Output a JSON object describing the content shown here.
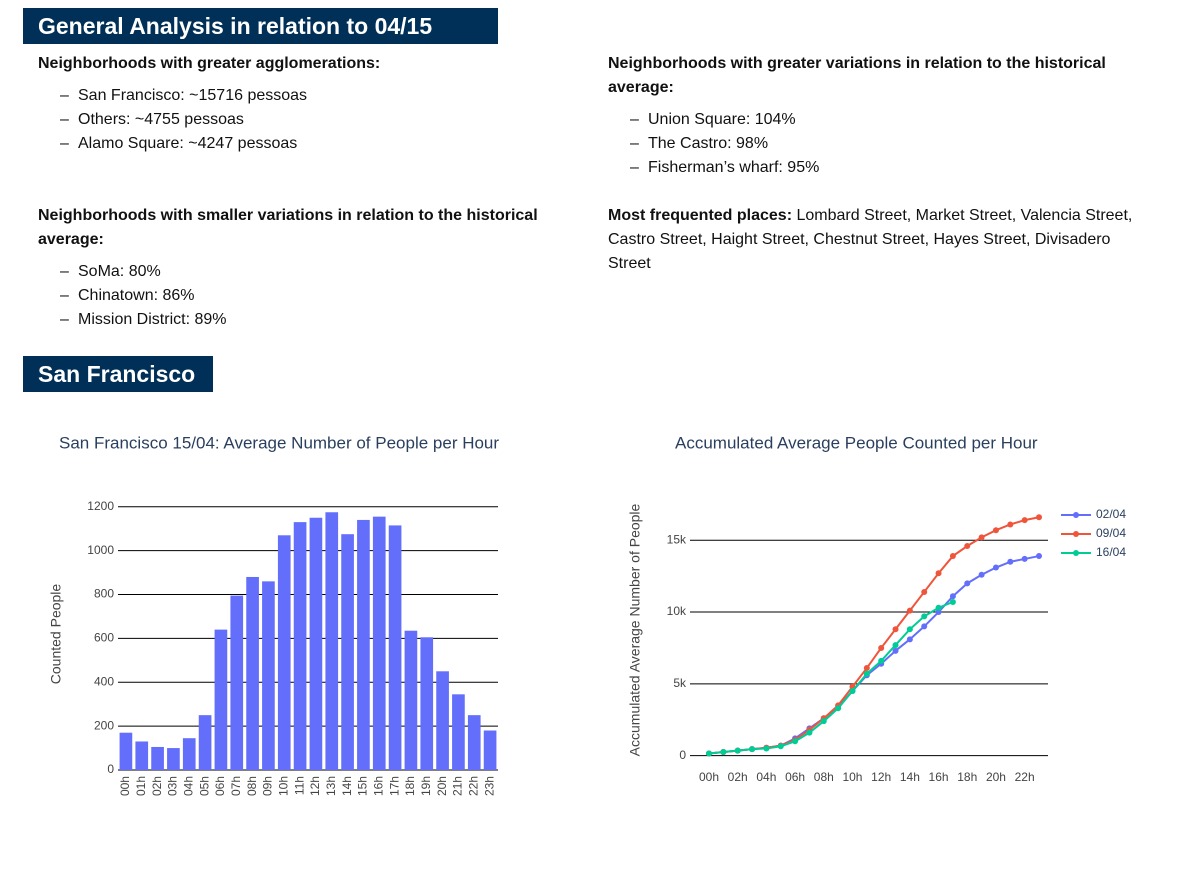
{
  "header": {
    "title": "General Analysis in relation to 04/15"
  },
  "sections": [
    {
      "title": "Neighborhoods with greater agglomerations:",
      "items": [
        "San Francisco: ~15716 pessoas",
        "Others: ~4755 pessoas",
        "Alamo Square: ~4247 pessoas"
      ]
    },
    {
      "title": "Neighborhoods with greater variations in relation to the historical average:",
      "items": [
        "Union Square: 104%",
        "The Castro: 98%",
        "Fisherman’s wharf: 95%"
      ]
    },
    {
      "title": "Neighborhoods with smaller variations in relation to the historical average:",
      "items": [
        "SoMa: 80%",
        "Chinatown: 86%",
        "Mission District: 89%"
      ]
    }
  ],
  "places": {
    "label": "Most frequented places:",
    "text": "Lombard Street, Market Street, Valencia Street, Castro Street, Haight Street, Chestnut Street, Hayes Street, Divisadero Street"
  },
  "section2": {
    "title": "San Francisco"
  },
  "chart_data": [
    {
      "type": "bar",
      "title": "San Francisco 15/04: Average Number of People per Hour",
      "ylabel": "Counted People",
      "categories": [
        "00h",
        "01h",
        "02h",
        "03h",
        "04h",
        "05h",
        "06h",
        "07h",
        "08h",
        "09h",
        "10h",
        "11h",
        "12h",
        "13h",
        "14h",
        "15h",
        "16h",
        "17h",
        "18h",
        "19h",
        "20h",
        "21h",
        "22h",
        "23h"
      ],
      "values": [
        170,
        130,
        105,
        100,
        145,
        250,
        640,
        795,
        880,
        860,
        1070,
        1130,
        1150,
        1175,
        1075,
        1140,
        1155,
        1115,
        635,
        605,
        450,
        345,
        250,
        180
      ],
      "color": "#636efa",
      "ylim": [
        0,
        1240
      ],
      "yticks": [
        0,
        200,
        400,
        600,
        800,
        1000,
        1200
      ],
      "grid": true
    },
    {
      "type": "line",
      "title": "Accumulated Average People Counted per Hour",
      "ylabel": "Accumulated Average Number of People",
      "categories": [
        "00h",
        null,
        "02h",
        null,
        "04h",
        null,
        "06h",
        null,
        "08h",
        null,
        "10h",
        null,
        "12h",
        null,
        "14h",
        null,
        "16h",
        null,
        "18h",
        null,
        "20h",
        null,
        "22h",
        null
      ],
      "series": [
        {
          "name": "02/04",
          "color": "#636efa",
          "values": [
            150,
            250,
            350,
            450,
            550,
            700,
            1200,
            1900,
            2600,
            3400,
            4500,
            5600,
            6400,
            7300,
            8100,
            9000,
            10000,
            11100,
            12000,
            12600,
            13100,
            13500,
            13700,
            13900
          ]
        },
        {
          "name": "09/04",
          "color": "#ef553b",
          "values": [
            150,
            250,
            350,
            450,
            550,
            700,
            1100,
            1800,
            2600,
            3500,
            4800,
            6100,
            7500,
            8800,
            10100,
            11400,
            12700,
            13900,
            14600,
            15200,
            15700,
            16100,
            16400,
            16600
          ]
        },
        {
          "name": "16/04",
          "color": "#00cc96",
          "values": [
            150,
            250,
            350,
            450,
            500,
            650,
            1000,
            1600,
            2400,
            3300,
            4500,
            5700,
            6600,
            7700,
            8800,
            9700,
            10300,
            10700,
            null,
            null,
            null,
            null,
            null,
            null
          ]
        }
      ],
      "ylim": [
        -1000,
        18500
      ],
      "yticks": [
        0,
        {
          "value": 5000,
          "label": "5k"
        },
        {
          "value": 10000,
          "label": "10k"
        },
        {
          "value": 15000,
          "label": "15k"
        }
      ],
      "grid": true,
      "legend": "right"
    }
  ]
}
